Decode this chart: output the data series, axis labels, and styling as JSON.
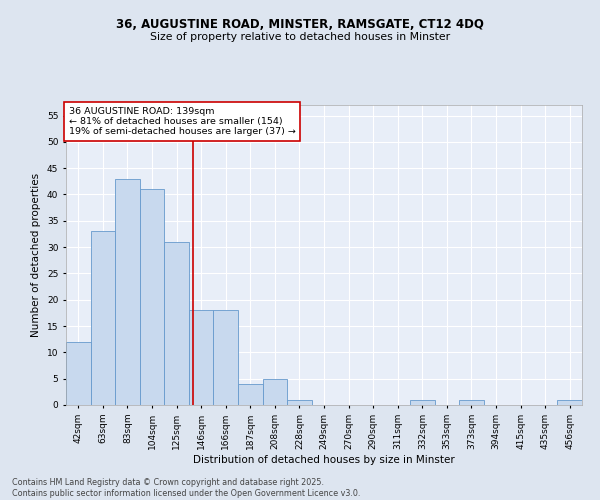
{
  "title1": "36, AUGUSTINE ROAD, MINSTER, RAMSGATE, CT12 4DQ",
  "title2": "Size of property relative to detached houses in Minster",
  "xlabel": "Distribution of detached houses by size in Minster",
  "ylabel": "Number of detached properties",
  "categories": [
    "42sqm",
    "63sqm",
    "83sqm",
    "104sqm",
    "125sqm",
    "146sqm",
    "166sqm",
    "187sqm",
    "208sqm",
    "228sqm",
    "249sqm",
    "270sqm",
    "290sqm",
    "311sqm",
    "332sqm",
    "353sqm",
    "373sqm",
    "394sqm",
    "415sqm",
    "435sqm",
    "456sqm"
  ],
  "values": [
    12,
    33,
    43,
    41,
    31,
    18,
    18,
    4,
    5,
    1,
    0,
    0,
    0,
    0,
    1,
    0,
    1,
    0,
    0,
    0,
    1
  ],
  "bar_color": "#c8d9ee",
  "bar_edge_color": "#6699cc",
  "annotation_title": "36 AUGUSTINE ROAD: 139sqm",
  "annotation_line1": "← 81% of detached houses are smaller (154)",
  "annotation_line2": "19% of semi-detached houses are larger (37) →",
  "ylim": [
    0,
    57
  ],
  "yticks": [
    0,
    5,
    10,
    15,
    20,
    25,
    30,
    35,
    40,
    45,
    50,
    55
  ],
  "footer1": "Contains HM Land Registry data © Crown copyright and database right 2025.",
  "footer2": "Contains public sector information licensed under the Open Government Licence v3.0.",
  "bg_color": "#dde5f0",
  "plot_bg_color": "#e8eef8",
  "grid_color": "#ffffff",
  "annotation_box_color": "#ffffff",
  "annotation_box_edge": "#cc0000",
  "red_line_color": "#cc0000",
  "title_fontsize": 8.5,
  "subtitle_fontsize": 7.8,
  "axis_label_fontsize": 7.5,
  "tick_fontsize": 6.5,
  "annotation_fontsize": 6.8,
  "footer_fontsize": 5.8
}
